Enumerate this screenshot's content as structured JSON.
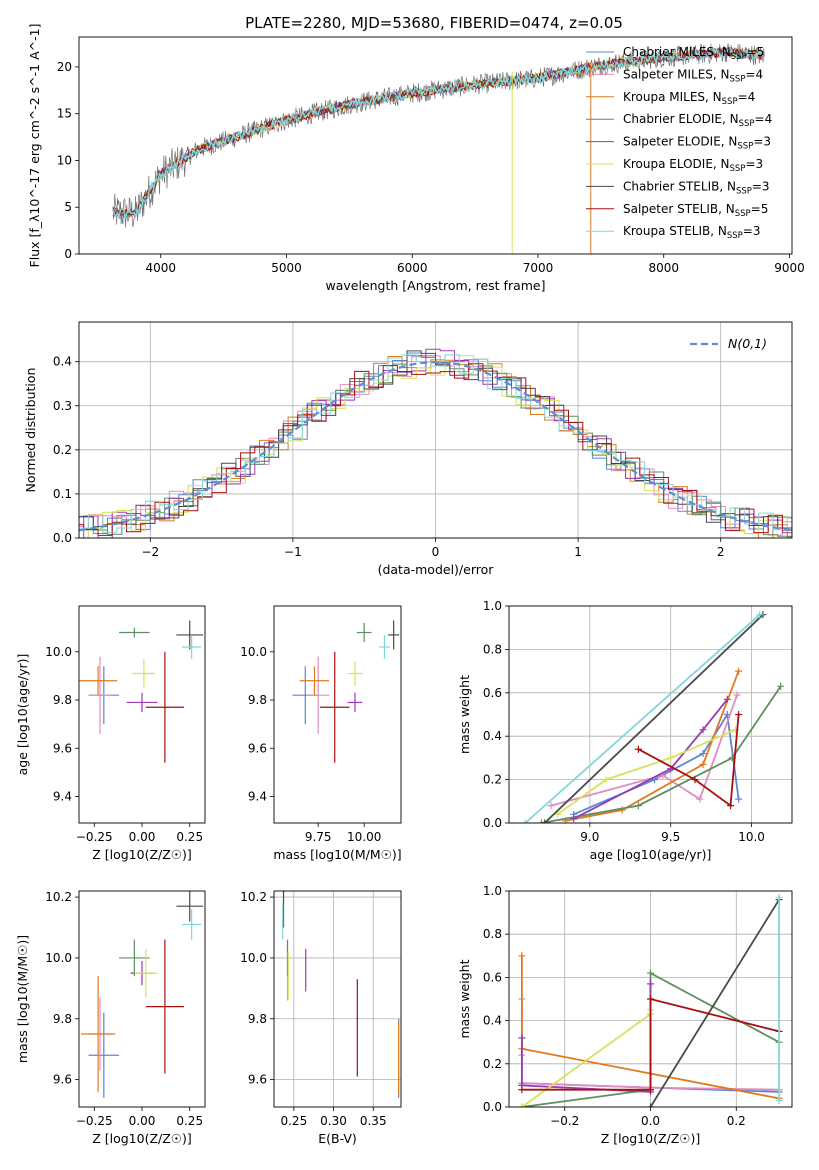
{
  "figure": {
    "title": "PLATE=2280, MJD=53680, FIBERID=0474, z=0.05"
  },
  "series_names": [
    "Chabrier MILES, N_SSP=5",
    "Salpeter MILES, N_SSP=4",
    "Kroupa MILES, N_SSP=4",
    "Chabrier ELODIE, N_SSP=4",
    "Salpeter ELODIE, N_SSP=3",
    "Kroupa ELODIE, N_SSP=3",
    "Chabrier STELIB, N_SSP=3",
    "Salpeter STELIB, N_SSP=5",
    "Kroupa STELIB, N_SSP=3"
  ],
  "series_colors": [
    "#5b86d6",
    "#e08bc4",
    "#e07a1f",
    "#5f8f5f",
    "#9a3ab3",
    "#d8e05a",
    "#4a4a4a",
    "#a81010",
    "#7fd6dc"
  ],
  "chart_data": [
    {
      "id": "spectrum",
      "type": "line",
      "title": "PLATE=2280, MJD=53680, FIBERID=0474, z=0.05",
      "xlabel": "wavelength [Angstrom, rest frame]",
      "ylabel": "Flux [f_λ10^-17 erg cm^-2 s^-1 A^-1]",
      "xlim": [
        3350,
        9020
      ],
      "ylim": [
        0,
        23.2
      ],
      "xticks": [
        4000,
        5000,
        6000,
        7000,
        8000,
        9000
      ],
      "yticks": [
        0,
        5,
        10,
        15,
        20
      ],
      "continuum": {
        "x": [
          3600,
          3800,
          3900,
          4000,
          4300,
          4600,
          5000,
          5500,
          6000,
          6500,
          7000,
          7500,
          8000,
          8500,
          8800
        ],
        "y": [
          4.5,
          4.3,
          6.5,
          8.5,
          11.2,
          12.5,
          14.3,
          16.0,
          17.2,
          18.1,
          18.8,
          20.2,
          21.0,
          21.6,
          21.2
        ]
      },
      "legend_loc": "upper right"
    },
    {
      "id": "residuals",
      "type": "histogram",
      "xlabel": "(data-model)/error",
      "ylabel": "Normed distribution",
      "xlim": [
        -2.5,
        2.5
      ],
      "ylim": [
        0,
        0.49
      ],
      "xticks": [
        -2,
        -1,
        0,
        1,
        2
      ],
      "yticks": [
        0.0,
        0.1,
        0.2,
        0.3,
        0.4
      ],
      "bin_width": 0.1,
      "reference_label": "N(0,1)",
      "reference_curve": "gaussian mean 0 sigma 1",
      "grid": true,
      "legend_loc": "upper right"
    },
    {
      "id": "age_vs_Z",
      "type": "scatter_errorbar",
      "xlabel": "Z [log10(Z/Z☉)]",
      "ylabel": "age [log10(age/yr)]",
      "xlim": [
        -0.33,
        0.33
      ],
      "ylim": [
        9.29,
        10.19
      ],
      "xticks": [
        -0.25,
        0.0,
        0.25
      ],
      "yticks": [
        9.4,
        9.6,
        9.8,
        10.0
      ],
      "points": [
        {
          "x": -0.2,
          "y": 9.82,
          "xerr": 0.08,
          "yerr": 0.12
        },
        {
          "x": -0.22,
          "y": 9.82,
          "xerr": 0.06,
          "yerr": 0.16
        },
        {
          "x": -0.23,
          "y": 9.88,
          "xerr": 0.1,
          "yerr": 0.06
        },
        {
          "x": -0.04,
          "y": 10.08,
          "xerr": 0.08,
          "yerr": 0.02
        },
        {
          "x": 0.0,
          "y": 9.79,
          "xerr": 0.08,
          "yerr": 0.04
        },
        {
          "x": 0.01,
          "y": 9.91,
          "xerr": 0.06,
          "yerr": 0.06
        },
        {
          "x": 0.25,
          "y": 10.07,
          "xerr": 0.07,
          "yerr": 0.06
        },
        {
          "x": 0.12,
          "y": 9.77,
          "xerr": 0.1,
          "yerr": 0.23
        },
        {
          "x": 0.26,
          "y": 10.02,
          "xerr": 0.05,
          "yerr": 0.05
        }
      ]
    },
    {
      "id": "age_vs_mass",
      "type": "scatter_errorbar",
      "xlabel": "mass [log10(M/M☉)]",
      "ylabel": "",
      "xlim": [
        9.51,
        10.2
      ],
      "ylim": [
        9.29,
        10.19
      ],
      "xticks": [
        9.75,
        10.0
      ],
      "yticks": [
        9.4,
        9.6,
        9.8,
        10.0
      ],
      "points": [
        {
          "x": 9.68,
          "y": 9.82,
          "xerr": 0.07,
          "yerr": 0.12
        },
        {
          "x": 9.75,
          "y": 9.82,
          "xerr": 0.06,
          "yerr": 0.16
        },
        {
          "x": 9.73,
          "y": 9.88,
          "xerr": 0.08,
          "yerr": 0.06
        },
        {
          "x": 10.0,
          "y": 10.08,
          "xerr": 0.04,
          "yerr": 0.04
        },
        {
          "x": 9.95,
          "y": 9.79,
          "xerr": 0.04,
          "yerr": 0.04
        },
        {
          "x": 9.95,
          "y": 9.91,
          "xerr": 0.04,
          "yerr": 0.05
        },
        {
          "x": 10.16,
          "y": 10.07,
          "xerr": 0.03,
          "yerr": 0.06
        },
        {
          "x": 9.84,
          "y": 9.77,
          "xerr": 0.08,
          "yerr": 0.23
        },
        {
          "x": 10.11,
          "y": 10.02,
          "xerr": 0.03,
          "yerr": 0.05
        }
      ]
    },
    {
      "id": "massweight_vs_age",
      "type": "line",
      "xlabel": "age [log10(age/yr)]",
      "ylabel": "mass weight",
      "xlim": [
        8.5,
        10.25
      ],
      "ylim": [
        0,
        1
      ],
      "xticks": [
        9.0,
        9.5,
        10.0
      ],
      "yticks": [
        0.0,
        0.2,
        0.4,
        0.6,
        0.8,
        1.0
      ],
      "grid": true,
      "series": [
        {
          "x": [
            8.9,
            9.4,
            9.7,
            9.85,
            9.92
          ],
          "y": [
            0.04,
            0.2,
            0.32,
            0.5,
            0.11
          ]
        },
        {
          "x": [
            8.76,
            9.45,
            9.68,
            9.91
          ],
          "y": [
            0.08,
            0.22,
            0.11,
            0.59
          ]
        },
        {
          "x": [
            8.85,
            9.2,
            9.7,
            9.92
          ],
          "y": [
            0.01,
            0.06,
            0.27,
            0.7
          ]
        },
        {
          "x": [
            8.7,
            9.3,
            9.88,
            10.18
          ],
          "y": [
            0.0,
            0.08,
            0.3,
            0.63
          ]
        },
        {
          "x": [
            8.9,
            9.5,
            9.7,
            9.85
          ],
          "y": [
            0.02,
            0.25,
            0.43,
            0.57
          ]
        },
        {
          "x": [
            8.8,
            9.1,
            9.5,
            9.9
          ],
          "y": [
            0.04,
            0.2,
            0.3,
            0.43
          ]
        },
        {
          "x": [
            8.72,
            10.07
          ],
          "y": [
            0.0,
            0.96
          ]
        },
        {
          "x": [
            9.3,
            9.65,
            9.87,
            9.92
          ],
          "y": [
            0.34,
            0.2,
            0.08,
            0.5
          ]
        },
        {
          "x": [
            8.6,
            10.05
          ],
          "y": [
            0.0,
            0.96
          ]
        }
      ]
    },
    {
      "id": "mass_vs_Z",
      "type": "scatter_errorbar",
      "xlabel": "Z [log10(Z/Z☉)]",
      "ylabel": "mass [log10(M/M☉)]",
      "xlim": [
        -0.33,
        0.33
      ],
      "ylim": [
        9.51,
        10.22
      ],
      "xticks": [
        -0.25,
        0.0,
        0.25
      ],
      "yticks": [
        9.6,
        9.8,
        10.0,
        10.2
      ],
      "points": [
        {
          "x": -0.2,
          "y": 9.68,
          "xerr": 0.08,
          "yerr": 0.14
        },
        {
          "x": -0.22,
          "y": 9.75,
          "xerr": 0.06,
          "yerr": 0.12
        },
        {
          "x": -0.23,
          "y": 9.75,
          "xerr": 0.09,
          "yerr": 0.19
        },
        {
          "x": -0.04,
          "y": 10.0,
          "xerr": 0.08,
          "yerr": 0.06
        },
        {
          "x": 0.0,
          "y": 9.95,
          "xerr": 0.06,
          "yerr": 0.04
        },
        {
          "x": 0.02,
          "y": 9.95,
          "xerr": 0.06,
          "yerr": 0.08
        },
        {
          "x": 0.25,
          "y": 10.17,
          "xerr": 0.07,
          "yerr": 0.05
        },
        {
          "x": 0.12,
          "y": 9.84,
          "xerr": 0.1,
          "yerr": 0.22
        },
        {
          "x": 0.26,
          "y": 10.11,
          "xerr": 0.05,
          "yerr": 0.05
        }
      ]
    },
    {
      "id": "mass_vs_EBV",
      "type": "scatter_errorbar",
      "xlabel": "E(B-V)",
      "ylabel": "",
      "xlim": [
        0.225,
        0.385
      ],
      "ylim": [
        9.51,
        10.22
      ],
      "xticks": [
        0.25,
        0.3,
        0.35
      ],
      "yticks": [
        9.6,
        9.8,
        10.0,
        10.2
      ],
      "grid": true,
      "points": [
        {
          "x": 0.382,
          "y": 9.67,
          "xerr": 0.0,
          "yerr": 0.13
        },
        {
          "x": 0.242,
          "y": 9.95,
          "xerr": 0.0,
          "yerr": 0.09
        },
        {
          "x": 0.382,
          "y": 9.67,
          "xerr": 0.0,
          "yerr": 0.12
        },
        {
          "x": 0.242,
          "y": 10.0,
          "xerr": 0.0,
          "yerr": 0.06
        },
        {
          "x": 0.265,
          "y": 9.96,
          "xerr": 0.0,
          "yerr": 0.07
        },
        {
          "x": 0.243,
          "y": 9.94,
          "xerr": 0.0,
          "yerr": 0.08
        },
        {
          "x": 0.237,
          "y": 10.16,
          "xerr": 0.0,
          "yerr": 0.06
        },
        {
          "x": 0.33,
          "y": 9.77,
          "xerr": 0.0,
          "yerr": 0.16
        },
        {
          "x": 0.236,
          "y": 10.12,
          "xerr": 0.0,
          "yerr": 0.06
        }
      ]
    },
    {
      "id": "massweight_vs_Z",
      "type": "line",
      "xlabel": "Z [log10(Z/Z☉)]",
      "ylabel": "mass weight",
      "xlim": [
        -0.33,
        0.33
      ],
      "ylim": [
        0,
        1
      ],
      "xticks": [
        -0.2,
        0.0,
        0.2
      ],
      "yticks": [
        0.0,
        0.2,
        0.4,
        0.6,
        0.8,
        1.0
      ],
      "grid": true,
      "series": [
        {
          "x": [
            -0.3,
            0.0,
            0.3
          ],
          "y": [
            0.11,
            0.09,
            0.07
          ]
        },
        {
          "x": [
            -0.3,
            -0.3,
            -0.3,
            0.0,
            0.3
          ],
          "y": [
            0.5,
            0.24,
            0.11,
            0.09,
            0.08
          ]
        },
        {
          "x": [
            -0.3,
            -0.3,
            0.3
          ],
          "y": [
            0.7,
            0.27,
            0.04
          ]
        },
        {
          "x": [
            -0.3,
            0.0,
            0.0,
            0.3
          ],
          "y": [
            0.0,
            0.08,
            0.62,
            0.3
          ]
        },
        {
          "x": [
            -0.3,
            -0.3,
            0.0,
            0.0
          ],
          "y": [
            0.32,
            0.1,
            0.07,
            0.57
          ]
        },
        {
          "x": [
            -0.3,
            0.0,
            0.0
          ],
          "y": [
            0.0,
            0.43,
            0.45
          ]
        },
        {
          "x": [
            0.0,
            0.3
          ],
          "y": [
            0.0,
            0.96
          ]
        },
        {
          "x": [
            -0.3,
            0.0,
            0.0,
            0.3
          ],
          "y": [
            0.08,
            0.08,
            0.5,
            0.35
          ]
        },
        {
          "x": [
            0.3,
            0.3
          ],
          "y": [
            0.03,
            0.97
          ]
        }
      ]
    }
  ]
}
